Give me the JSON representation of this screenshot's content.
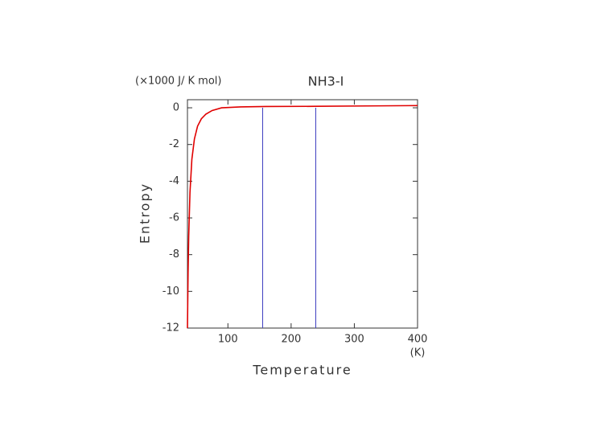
{
  "chart_data": {
    "type": "line",
    "title": "NH3-I",
    "y_unit_label": "(×1000 J/ K mol)",
    "ylabel": "Entropy",
    "xlabel": "Temperature",
    "x_unit_label": "(K)",
    "x": [
      36,
      37,
      38,
      40,
      43,
      47,
      52,
      58,
      65,
      75,
      90,
      120,
      160,
      240,
      320,
      400
    ],
    "series": [
      {
        "color": "#e00000",
        "values": [
          -12,
          -9,
          -7,
          -4.6,
          -2.8,
          -1.7,
          -1.0,
          -0.6,
          -0.35,
          -0.15,
          0,
          0.05,
          0.07,
          0.08,
          0.1,
          0.12
        ]
      }
    ],
    "vlines": [
      155,
      239
    ],
    "vline_color": "#4040c0",
    "xlim": [
      36,
      400
    ],
    "xticks": [
      100,
      200,
      300,
      400
    ],
    "ylim": [
      -12,
      0.44
    ],
    "yticks": [
      0,
      -2,
      -4,
      -6,
      -8,
      -10,
      -12
    ],
    "grid": false
  }
}
